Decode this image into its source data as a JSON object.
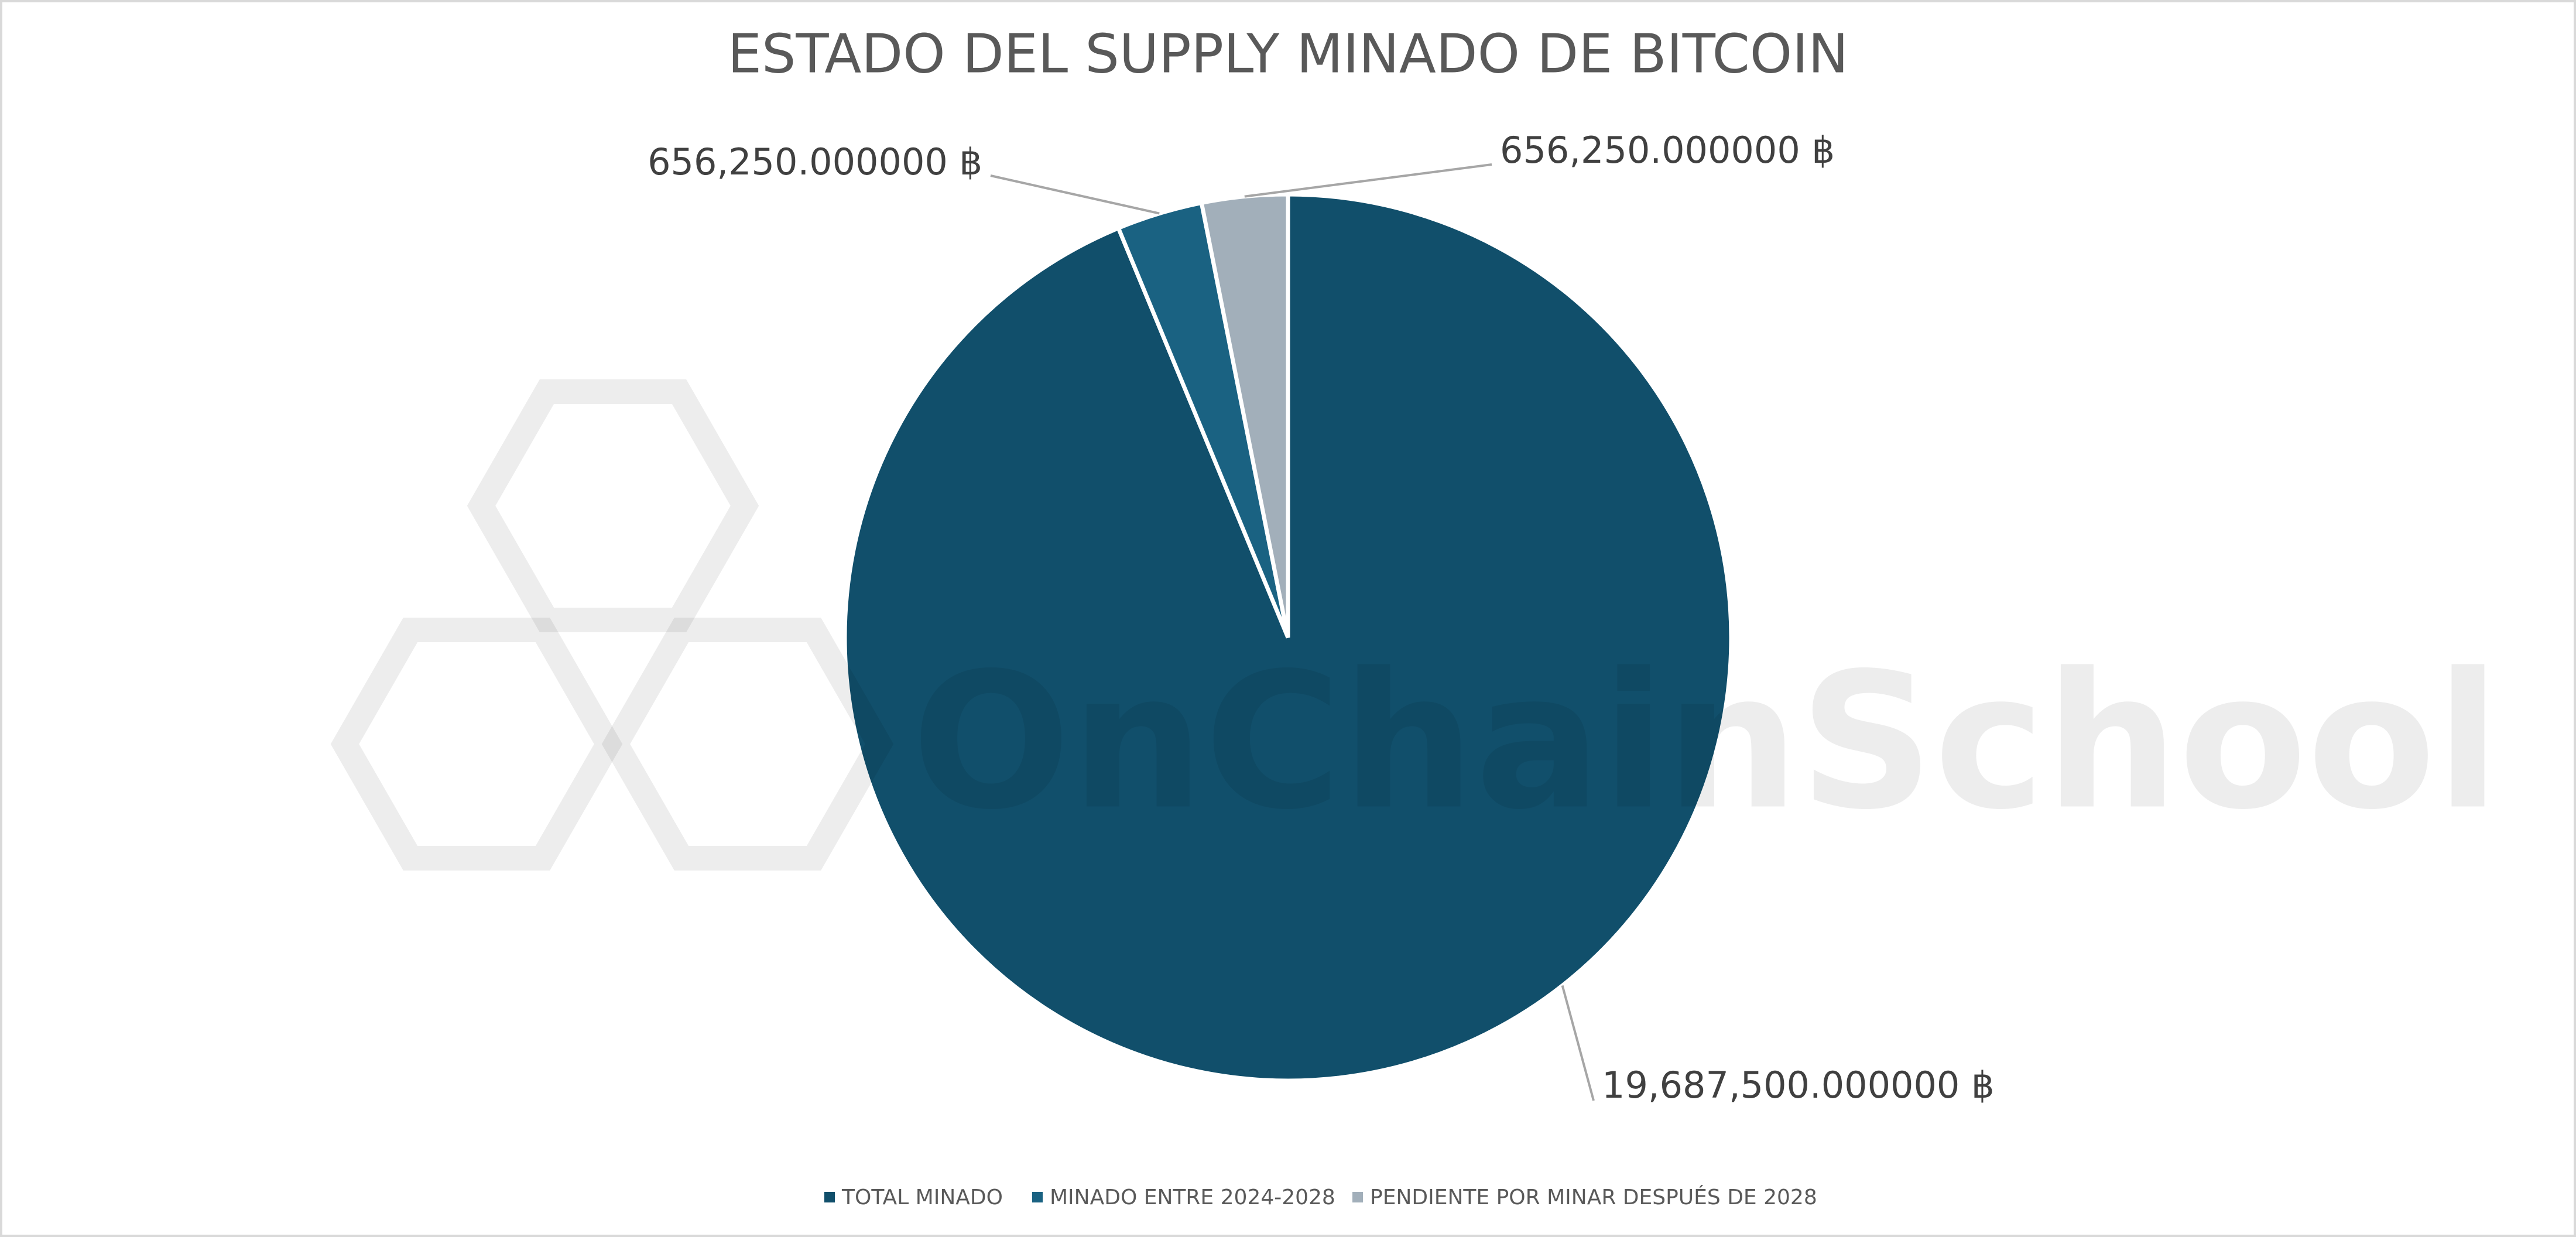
{
  "chart_data": {
    "type": "pie",
    "title": "ESTADO DEL SUPPLY MINADO DE BITCOIN",
    "categories": [
      "TOTAL MINADO",
      "MINADO ENTRE 2024-2028",
      "PENDIENTE POR MINAR DESPUÉS DE 2028"
    ],
    "values": [
      19687500,
      656250,
      656250
    ],
    "value_labels": [
      "19,687,500.000000 ฿",
      "656,250.000000 ฿",
      "656,250.000000 ฿"
    ],
    "colors": [
      "#114f6b",
      "#1a6282",
      "#a2afba"
    ],
    "legend": "bottom",
    "watermark": "OnChainSchool"
  }
}
